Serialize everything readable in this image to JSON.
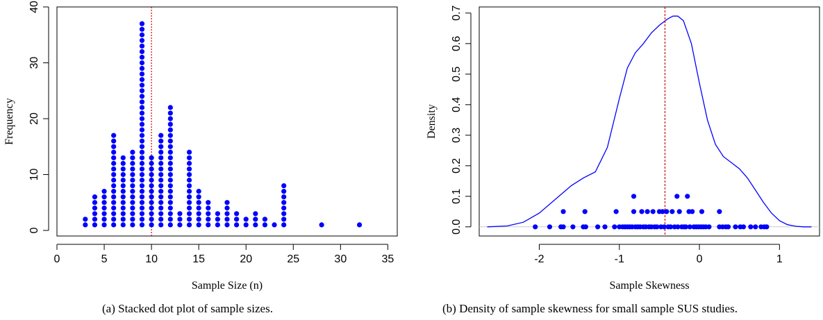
{
  "captions": {
    "a": "(a) Stacked dot plot of sample sizes.",
    "b": "(b) Density of sample skewness for small sample SUS studies."
  },
  "chart_data": [
    {
      "type": "scatter",
      "subtype": "stacked-dot-plot",
      "title": "",
      "xlabel": "Sample Size (n)",
      "ylabel": "Frequency",
      "xlim": [
        0,
        36
      ],
      "ylim": [
        -1,
        40
      ],
      "xticks": [
        0,
        5,
        10,
        15,
        20,
        25,
        30,
        35
      ],
      "yticks": [
        0,
        10,
        20,
        30,
        40
      ],
      "point_color": "#0000ff",
      "reference_line": {
        "x": 10,
        "color": "#cc0000",
        "style": "dotted"
      },
      "counts": [
        {
          "x": 3,
          "count": 2
        },
        {
          "x": 4,
          "count": 6
        },
        {
          "x": 5,
          "count": 7
        },
        {
          "x": 6,
          "count": 17
        },
        {
          "x": 7,
          "count": 13
        },
        {
          "x": 8,
          "count": 14
        },
        {
          "x": 9,
          "count": 37
        },
        {
          "x": 10,
          "count": 13
        },
        {
          "x": 11,
          "count": 17
        },
        {
          "x": 12,
          "count": 22
        },
        {
          "x": 13,
          "count": 3
        },
        {
          "x": 14,
          "count": 14
        },
        {
          "x": 15,
          "count": 7
        },
        {
          "x": 16,
          "count": 5
        },
        {
          "x": 17,
          "count": 3
        },
        {
          "x": 18,
          "count": 5
        },
        {
          "x": 19,
          "count": 3
        },
        {
          "x": 20,
          "count": 2
        },
        {
          "x": 21,
          "count": 3
        },
        {
          "x": 22,
          "count": 2
        },
        {
          "x": 23,
          "count": 1
        },
        {
          "x": 24,
          "count": 8
        },
        {
          "x": 28,
          "count": 1
        },
        {
          "x": 32,
          "count": 1
        }
      ]
    },
    {
      "type": "line",
      "subtype": "density-with-rug-dots",
      "title": "",
      "xlabel": "Sample Skewness",
      "ylabel": "Density",
      "xlim": [
        -2.75,
        1.5
      ],
      "ylim": [
        -0.03,
        0.72
      ],
      "xticks": [
        -2,
        -1,
        0,
        1
      ],
      "yticks": [
        0.0,
        0.1,
        0.2,
        0.3,
        0.4,
        0.5,
        0.6,
        0.7
      ],
      "line_color": "#0000ff",
      "baseline_color": "#cccccc",
      "reference_line": {
        "x": -0.43,
        "color": "#cc0000",
        "style": "dashed"
      },
      "density": {
        "x": [
          -2.65,
          -2.4,
          -2.2,
          -2.0,
          -1.8,
          -1.6,
          -1.45,
          -1.3,
          -1.15,
          -1.0,
          -0.9,
          -0.8,
          -0.7,
          -0.6,
          -0.5,
          -0.4,
          -0.33,
          -0.27,
          -0.2,
          -0.1,
          0.0,
          0.1,
          0.2,
          0.3,
          0.4,
          0.5,
          0.6,
          0.7,
          0.8,
          0.9,
          1.0,
          1.1,
          1.2,
          1.3,
          1.4
        ],
        "y": [
          0.0,
          0.003,
          0.015,
          0.045,
          0.09,
          0.135,
          0.16,
          0.18,
          0.26,
          0.42,
          0.52,
          0.57,
          0.6,
          0.635,
          0.66,
          0.68,
          0.69,
          0.69,
          0.675,
          0.6,
          0.47,
          0.35,
          0.27,
          0.23,
          0.21,
          0.19,
          0.16,
          0.12,
          0.08,
          0.045,
          0.02,
          0.007,
          0.002,
          0.0,
          0.0
        ]
      },
      "dots": [
        {
          "x": -2.05,
          "y": 0.0
        },
        {
          "x": -1.87,
          "y": 0.0
        },
        {
          "x": -1.73,
          "y": 0.0
        },
        {
          "x": -1.7,
          "y": 0.0
        },
        {
          "x": -1.7,
          "y": 0.05
        },
        {
          "x": -1.58,
          "y": 0.0
        },
        {
          "x": -1.45,
          "y": 0.0
        },
        {
          "x": -1.42,
          "y": 0.0
        },
        {
          "x": -1.43,
          "y": 0.05
        },
        {
          "x": -1.27,
          "y": 0.0
        },
        {
          "x": -1.18,
          "y": 0.0
        },
        {
          "x": -1.06,
          "y": 0.0
        },
        {
          "x": -1.04,
          "y": 0.05
        },
        {
          "x": -1.0,
          "y": 0.0
        },
        {
          "x": -0.96,
          "y": 0.0
        },
        {
          "x": -0.93,
          "y": 0.0
        },
        {
          "x": -0.9,
          "y": 0.0
        },
        {
          "x": -0.87,
          "y": 0.0
        },
        {
          "x": -0.84,
          "y": 0.0
        },
        {
          "x": -0.82,
          "y": 0.05
        },
        {
          "x": -0.82,
          "y": 0.1
        },
        {
          "x": -0.8,
          "y": 0.0
        },
        {
          "x": -0.77,
          "y": 0.0
        },
        {
          "x": -0.74,
          "y": 0.0
        },
        {
          "x": -0.72,
          "y": 0.05
        },
        {
          "x": -0.7,
          "y": 0.0
        },
        {
          "x": -0.67,
          "y": 0.0
        },
        {
          "x": -0.65,
          "y": 0.05
        },
        {
          "x": -0.63,
          "y": 0.0
        },
        {
          "x": -0.6,
          "y": 0.0
        },
        {
          "x": -0.58,
          "y": 0.05
        },
        {
          "x": -0.56,
          "y": 0.0
        },
        {
          "x": -0.53,
          "y": 0.0
        },
        {
          "x": -0.5,
          "y": 0.05
        },
        {
          "x": -0.48,
          "y": 0.0
        },
        {
          "x": -0.46,
          "y": 0.05
        },
        {
          "x": -0.44,
          "y": 0.0
        },
        {
          "x": -0.41,
          "y": 0.05
        },
        {
          "x": -0.39,
          "y": 0.0
        },
        {
          "x": -0.36,
          "y": 0.0
        },
        {
          "x": -0.34,
          "y": 0.05
        },
        {
          "x": -0.31,
          "y": 0.0
        },
        {
          "x": -0.28,
          "y": 0.1
        },
        {
          "x": -0.27,
          "y": 0.0
        },
        {
          "x": -0.25,
          "y": 0.05
        },
        {
          "x": -0.22,
          "y": 0.0
        },
        {
          "x": -0.19,
          "y": 0.0
        },
        {
          "x": -0.17,
          "y": 0.0
        },
        {
          "x": -0.15,
          "y": 0.1
        },
        {
          "x": -0.13,
          "y": 0.05
        },
        {
          "x": -0.12,
          "y": 0.0
        },
        {
          "x": -0.09,
          "y": 0.05
        },
        {
          "x": -0.07,
          "y": 0.0
        },
        {
          "x": -0.04,
          "y": 0.0
        },
        {
          "x": -0.01,
          "y": 0.0
        },
        {
          "x": 0.02,
          "y": 0.0
        },
        {
          "x": 0.03,
          "y": 0.05
        },
        {
          "x": 0.05,
          "y": 0.0
        },
        {
          "x": 0.08,
          "y": 0.0
        },
        {
          "x": 0.12,
          "y": 0.0
        },
        {
          "x": 0.25,
          "y": 0.0
        },
        {
          "x": 0.25,
          "y": 0.05
        },
        {
          "x": 0.29,
          "y": 0.0
        },
        {
          "x": 0.33,
          "y": 0.0
        },
        {
          "x": 0.36,
          "y": 0.0
        },
        {
          "x": 0.45,
          "y": 0.0
        },
        {
          "x": 0.51,
          "y": 0.0
        },
        {
          "x": 0.55,
          "y": 0.0
        },
        {
          "x": 0.64,
          "y": 0.0
        },
        {
          "x": 0.7,
          "y": 0.0
        },
        {
          "x": 0.77,
          "y": 0.0
        },
        {
          "x": 0.81,
          "y": 0.0
        },
        {
          "x": 0.84,
          "y": 0.0
        }
      ]
    }
  ]
}
